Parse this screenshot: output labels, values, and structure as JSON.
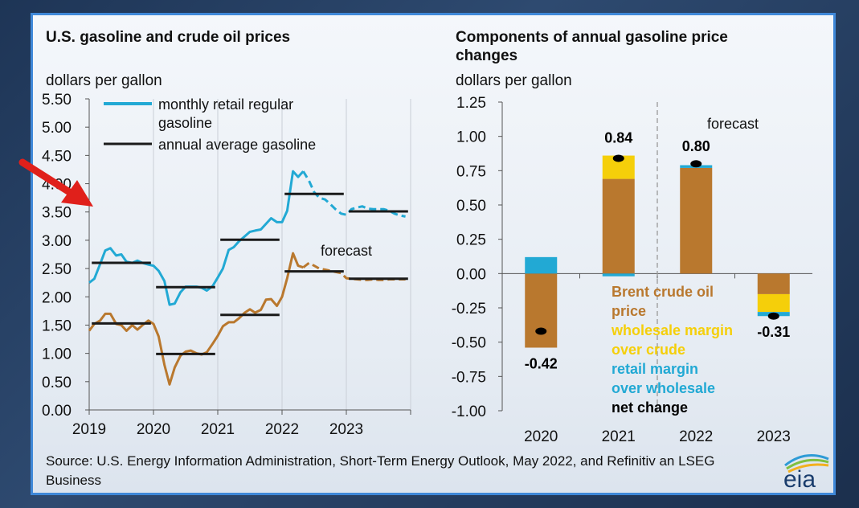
{
  "colors": {
    "gasoline": "#22a9d4",
    "crude": "#b9782e",
    "annual": "#1a1a1a",
    "brent": "#b9782e",
    "wholesale": "#f5cf0a",
    "retail": "#22a9d4",
    "net": "#000000",
    "arrow": "#e0201b",
    "card_border": "#3f88d8"
  },
  "left_chart": {
    "title": "U.S. gasoline and crude oil prices",
    "unit": "dollars per gallon",
    "forecast_label": "forecast",
    "legend": [
      "monthly retail regular gasoline",
      "annual average gasoline"
    ]
  },
  "right_chart": {
    "title": "Components of annual gasoline price changes",
    "unit": "dollars per gallon",
    "forecast_label": "forecast",
    "legend": [
      "Brent  crude oil price",
      "wholesale margin  over crude",
      "retail margin  over wholesale",
      "net change"
    ]
  },
  "source": "Source: U.S. Energy Information Administration, Short-Term Energy Outlook, May 2022, and Refinitiv an LSEG Business",
  "logo": "eia",
  "chart_data": [
    {
      "type": "line",
      "title": "U.S. gasoline and crude oil prices",
      "ylabel": "dollars per gallon",
      "ylim": [
        0,
        5.5
      ],
      "yticks": [
        "0.00",
        "0.50",
        "1.00",
        "1.50",
        "2.00",
        "2.50",
        "3.00",
        "3.50",
        "4.00",
        "4.50",
        "5.00",
        "5.50"
      ],
      "xlim": [
        2019,
        2024
      ],
      "xticks": [
        "2019",
        "2020",
        "2021",
        "2022",
        "2023"
      ],
      "grid": "vertical",
      "forecast_start": 2022.33,
      "series": [
        {
          "name": "monthly retail regular gasoline",
          "x": [
            2019.0,
            2019.08,
            2019.17,
            2019.25,
            2019.33,
            2019.42,
            2019.5,
            2019.58,
            2019.67,
            2019.75,
            2019.83,
            2019.92,
            2020.0,
            2020.08,
            2020.17,
            2020.25,
            2020.33,
            2020.42,
            2020.5,
            2020.58,
            2020.67,
            2020.75,
            2020.83,
            2020.92,
            2021.0,
            2021.08,
            2021.17,
            2021.25,
            2021.33,
            2021.42,
            2021.5,
            2021.58,
            2021.67,
            2021.75,
            2021.83,
            2021.92,
            2022.0,
            2022.08,
            2022.17,
            2022.25,
            2022.33,
            2022.42,
            2022.5,
            2022.58,
            2022.67,
            2022.75,
            2022.83,
            2022.92,
            2023.0,
            2023.08,
            2023.17,
            2023.25,
            2023.33,
            2023.42,
            2023.5,
            2023.58,
            2023.67,
            2023.75,
            2023.83,
            2023.92
          ],
          "y": [
            2.25,
            2.32,
            2.58,
            2.82,
            2.86,
            2.73,
            2.75,
            2.62,
            2.6,
            2.64,
            2.6,
            2.57,
            2.55,
            2.46,
            2.28,
            1.86,
            1.88,
            2.08,
            2.18,
            2.18,
            2.18,
            2.16,
            2.11,
            2.19,
            2.34,
            2.5,
            2.83,
            2.88,
            2.98,
            3.07,
            3.15,
            3.17,
            3.19,
            3.29,
            3.39,
            3.32,
            3.32,
            3.52,
            4.22,
            4.12,
            4.22,
            4.05,
            3.85,
            3.75,
            3.72,
            3.64,
            3.55,
            3.47,
            3.45,
            3.55,
            3.58,
            3.6,
            3.56,
            3.55,
            3.55,
            3.55,
            3.52,
            3.47,
            3.44,
            3.42
          ],
          "forecast_from_index": 40
        },
        {
          "name": "crude oil",
          "x": [
            2019.0,
            2019.08,
            2019.17,
            2019.25,
            2019.33,
            2019.42,
            2019.5,
            2019.58,
            2019.67,
            2019.75,
            2019.83,
            2019.92,
            2020.0,
            2020.08,
            2020.17,
            2020.25,
            2020.33,
            2020.42,
            2020.5,
            2020.58,
            2020.67,
            2020.75,
            2020.83,
            2020.92,
            2021.0,
            2021.08,
            2021.17,
            2021.25,
            2021.33,
            2021.42,
            2021.5,
            2021.58,
            2021.67,
            2021.75,
            2021.83,
            2021.92,
            2022.0,
            2022.08,
            2022.17,
            2022.25,
            2022.33,
            2022.42,
            2022.5,
            2022.58,
            2022.67,
            2022.75,
            2022.83,
            2022.92,
            2023.0,
            2023.08,
            2023.17,
            2023.25,
            2023.33,
            2023.42,
            2023.5,
            2023.58,
            2023.67,
            2023.75,
            2023.83,
            2023.92
          ],
          "y": [
            1.4,
            1.52,
            1.58,
            1.7,
            1.7,
            1.52,
            1.5,
            1.4,
            1.5,
            1.42,
            1.5,
            1.58,
            1.52,
            1.3,
            0.8,
            0.45,
            0.75,
            0.96,
            1.03,
            1.05,
            1.0,
            0.98,
            1.02,
            1.17,
            1.31,
            1.48,
            1.55,
            1.55,
            1.62,
            1.72,
            1.78,
            1.72,
            1.77,
            1.95,
            1.96,
            1.84,
            2.0,
            2.33,
            2.77,
            2.55,
            2.52,
            2.6,
            2.55,
            2.5,
            2.48,
            2.46,
            2.44,
            2.42,
            2.33,
            2.32,
            2.31,
            2.3,
            2.3,
            2.31,
            2.3,
            2.3,
            2.31,
            2.31,
            2.31,
            2.31
          ],
          "forecast_from_index": 40
        },
        {
          "name": "annual average gasoline",
          "segments": [
            {
              "year": 2019,
              "value": 2.6
            },
            {
              "year": 2020,
              "value": 2.17
            },
            {
              "year": 2021,
              "value": 3.01
            },
            {
              "year": 2022,
              "value": 3.82
            },
            {
              "year": 2023,
              "value": 3.51
            }
          ]
        },
        {
          "name": "annual average crude",
          "segments": [
            {
              "year": 2019,
              "value": 1.53
            },
            {
              "year": 2020,
              "value": 0.99
            },
            {
              "year": 2021,
              "value": 1.68
            },
            {
              "year": 2022,
              "value": 2.45
            },
            {
              "year": 2023,
              "value": 2.32
            }
          ]
        }
      ]
    },
    {
      "type": "bar",
      "stacked": true,
      "title": "Components of annual gasoline price changes",
      "ylabel": "dollars per gallon",
      "ylim": [
        -1.0,
        1.25
      ],
      "yticks": [
        "1.25",
        "1.00",
        "0.75",
        "0.50",
        "0.25",
        "0.00",
        "-0.25",
        "-0.50",
        "-0.75",
        "-1.00"
      ],
      "categories": [
        "2020",
        "2021",
        "2022",
        "2023"
      ],
      "forecast_divider_after": "2021",
      "series": [
        {
          "name": "Brent  crude oil price",
          "values": [
            -0.54,
            0.69,
            0.77,
            -0.15
          ]
        },
        {
          "name": "wholesale margin  over crude",
          "values": [
            0.0,
            0.17,
            0.0,
            -0.13
          ]
        },
        {
          "name": "retail margin  over wholesale",
          "values": [
            0.12,
            -0.02,
            0.02,
            -0.03
          ]
        }
      ],
      "net_change": {
        "name": "net change",
        "values": [
          -0.42,
          0.84,
          0.8,
          -0.31
        ],
        "labels": [
          "-0.42",
          "0.84",
          "0.80",
          "-0.31"
        ]
      }
    }
  ]
}
